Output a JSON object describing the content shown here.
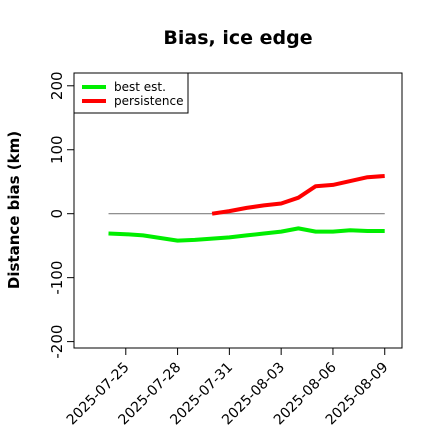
{
  "chart_data": {
    "type": "line",
    "title": "Bias, ice edge",
    "ylabel": "Distance bias (km)",
    "xlabel": "",
    "ylim": [
      -210,
      220
    ],
    "xlim": [
      "2025-07-22",
      "2025-08-10"
    ],
    "yticks": [
      -200,
      -100,
      0,
      100,
      200
    ],
    "xticks": [
      "2025-07-25",
      "2025-07-28",
      "2025-07-31",
      "2025-08-03",
      "2025-08-06",
      "2025-08-09"
    ],
    "reference_line": {
      "y": 0,
      "from": "2025-07-24",
      "to": "2025-08-09",
      "color": "#808080"
    },
    "legend_position": "top-left",
    "series": [
      {
        "name": "best est.",
        "color": "#00ee00",
        "points": [
          [
            "2025-07-24",
            -31
          ],
          [
            "2025-07-25",
            -32
          ],
          [
            "2025-07-26",
            -34
          ],
          [
            "2025-07-27",
            -38
          ],
          [
            "2025-07-28",
            -42
          ],
          [
            "2025-07-29",
            -41
          ],
          [
            "2025-07-30",
            -39
          ],
          [
            "2025-07-31",
            -37
          ],
          [
            "2025-08-01",
            -34
          ],
          [
            "2025-08-02",
            -31
          ],
          [
            "2025-08-03",
            -28
          ],
          [
            "2025-08-04",
            -23
          ],
          [
            "2025-08-05",
            -28
          ],
          [
            "2025-08-06",
            -28
          ],
          [
            "2025-08-07",
            -26
          ],
          [
            "2025-08-08",
            -27
          ],
          [
            "2025-08-09",
            -27
          ]
        ]
      },
      {
        "name": "persistence",
        "color": "#ff0000",
        "points": [
          [
            "2025-07-30",
            0
          ],
          [
            "2025-07-31",
            4
          ],
          [
            "2025-08-01",
            9
          ],
          [
            "2025-08-02",
            13
          ],
          [
            "2025-08-03",
            16
          ],
          [
            "2025-08-04",
            25
          ],
          [
            "2025-08-05",
            43
          ],
          [
            "2025-08-06",
            45
          ],
          [
            "2025-08-07",
            51
          ],
          [
            "2025-08-08",
            57
          ],
          [
            "2025-08-09",
            59
          ]
        ]
      }
    ]
  }
}
